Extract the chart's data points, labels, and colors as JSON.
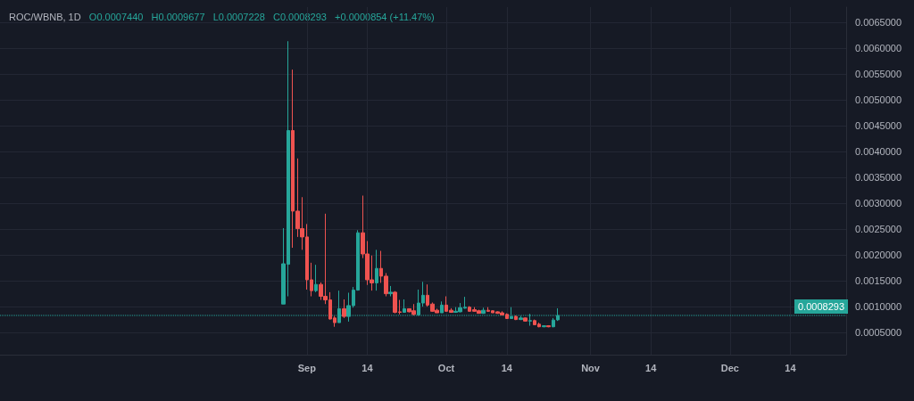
{
  "chart_data": {
    "type": "candlestick",
    "title": "ROC/WBNB, 1D",
    "annotations": [
      "O0.0007440",
      "H0.0009677",
      "L0.0007228",
      "C0.0008293",
      "+0.0000854 (+11.47%)"
    ],
    "x": [
      "--08-27",
      "--08-28",
      "--08-29",
      "--08-30",
      "--08-31",
      "--09-01",
      "--09-02",
      "--09-03",
      "--09-04",
      "--09-05",
      "--09-06",
      "--09-07",
      "--09-08",
      "--09-09",
      "--09-10",
      "--09-11",
      "--09-12",
      "--09-13",
      "--09-14",
      "--09-15",
      "--09-16",
      "--09-17",
      "--09-18",
      "--09-19",
      "--09-20",
      "--09-21",
      "--09-22",
      "--09-23",
      "--09-24",
      "--09-25",
      "--09-26",
      "--09-27",
      "--09-28",
      "--09-29",
      "--09-30",
      "--10-01",
      "--10-02",
      "--10-03",
      "--10-04",
      "--10-05",
      "--10-06",
      "--10-07",
      "--10-08",
      "--10-09",
      "--10-10",
      "--10-11",
      "--10-12",
      "--10-13",
      "--10-14",
      "--10-15",
      "--10-16",
      "--10-17",
      "--10-18",
      "--10-19",
      "--10-20",
      "--10-21",
      "--10-22",
      "--10-23",
      "--10-24",
      "--10-25"
    ],
    "ohlc": [
      [
        0.00105,
        0.00252,
        0.00105,
        0.00183
      ],
      [
        0.00182,
        0.00614,
        0.0012,
        0.00441
      ],
      [
        0.00441,
        0.00559,
        0.00214,
        0.00285
      ],
      [
        0.00285,
        0.00387,
        0.00235,
        0.00251
      ],
      [
        0.00251,
        0.00312,
        0.0021,
        0.00235
      ],
      [
        0.00235,
        0.0026,
        0.00133,
        0.00152
      ],
      [
        0.00152,
        0.00185,
        0.0012,
        0.00131
      ],
      [
        0.00131,
        0.00181,
        0.00128,
        0.00143
      ],
      [
        0.00143,
        0.00147,
        0.00113,
        0.0012
      ],
      [
        0.0012,
        0.0028,
        0.00105,
        0.00113
      ],
      [
        0.00113,
        0.00128,
        0.00075,
        0.00076
      ],
      [
        0.00078,
        0.00082,
        0.00061,
        0.00069
      ],
      [
        0.00069,
        0.00131,
        0.00069,
        0.00096
      ],
      [
        0.00096,
        0.00114,
        0.00078,
        0.00081
      ],
      [
        0.00081,
        0.00127,
        0.00071,
        0.00102
      ],
      [
        0.00102,
        0.00138,
        0.00098,
        0.00132
      ],
      [
        0.00132,
        0.00248,
        0.00131,
        0.00243
      ],
      [
        0.00243,
        0.00315,
        0.00194,
        0.00202
      ],
      [
        0.00202,
        0.00227,
        0.00142,
        0.00152
      ],
      [
        0.00152,
        0.00199,
        0.00131,
        0.00146
      ],
      [
        0.00146,
        0.0021,
        0.00131,
        0.00174
      ],
      [
        0.00174,
        0.00208,
        0.00146,
        0.00159
      ],
      [
        0.00159,
        0.00165,
        0.0012,
        0.00125
      ],
      [
        0.00125,
        0.0014,
        0.0012,
        0.00128
      ],
      [
        0.00128,
        0.0013,
        0.00087,
        0.00089
      ],
      [
        0.0009,
        0.00113,
        0.00085,
        0.00089
      ],
      [
        0.00089,
        0.00114,
        0.00089,
        0.00096
      ],
      [
        0.00096,
        0.00096,
        0.00089,
        0.0009
      ],
      [
        0.00092,
        0.00105,
        0.00083,
        0.00085
      ],
      [
        0.00084,
        0.00133,
        0.00082,
        0.00107
      ],
      [
        0.00107,
        0.00148,
        0.001,
        0.00122
      ],
      [
        0.00122,
        0.00143,
        0.001,
        0.00103
      ],
      [
        0.00105,
        0.00108,
        0.0009,
        0.00091
      ],
      [
        0.00093,
        0.00096,
        0.00088,
        0.00088
      ],
      [
        0.00088,
        0.0011,
        0.00088,
        0.00103
      ],
      [
        0.00103,
        0.0012,
        0.0009,
        0.00091
      ],
      [
        0.00093,
        0.00097,
        0.00088,
        0.00089
      ],
      [
        0.00089,
        0.00099,
        0.00088,
        0.00091
      ],
      [
        0.0009,
        0.00107,
        0.00089,
        0.00098
      ],
      [
        0.00097,
        0.00119,
        0.00096,
        0.00099
      ],
      [
        0.00099,
        0.00101,
        0.0009,
        0.00091
      ],
      [
        0.00094,
        0.00099,
        0.0009,
        0.00091
      ],
      [
        0.00092,
        0.00094,
        0.00087,
        0.00087
      ],
      [
        0.00087,
        0.00098,
        0.00086,
        0.00093
      ],
      [
        0.00093,
        0.00099,
        0.0009,
        0.00091
      ],
      [
        0.00092,
        0.00093,
        0.00088,
        0.00088
      ],
      [
        0.0009,
        0.00091,
        0.00086,
        0.00087
      ],
      [
        0.00088,
        0.00091,
        0.00083,
        0.00084
      ],
      [
        0.00085,
        0.00087,
        0.00076,
        0.00077
      ],
      [
        0.00077,
        0.00099,
        0.00076,
        0.00081
      ],
      [
        0.00081,
        0.00083,
        0.00074,
        0.00075
      ],
      [
        0.00075,
        0.00082,
        0.00074,
        0.00078
      ],
      [
        0.00078,
        0.00079,
        0.00071,
        0.00072
      ],
      [
        0.00072,
        0.00086,
        0.00063,
        0.00073
      ],
      [
        0.00073,
        0.00075,
        0.00064,
        0.00065
      ],
      [
        0.00066,
        0.00069,
        0.0006,
        0.00061
      ],
      [
        0.00061,
        0.00064,
        0.0006,
        0.00063
      ],
      [
        0.00063,
        0.00064,
        0.0006,
        0.00061
      ],
      [
        0.00061,
        0.00078,
        0.0006,
        0.00074
      ],
      [
        0.000744,
        0.0009677,
        0.0007228,
        0.0008293
      ]
    ],
    "colors": [
      "#26a69a",
      "#26a69a",
      "#ef5350",
      "#ef5350",
      "#ef5350",
      "#ef5350",
      "#ef5350",
      "#26a69a",
      "#ef5350",
      "#ef5350",
      "#ef5350",
      "#ef5350",
      "#26a69a",
      "#ef5350",
      "#26a69a",
      "#26a69a",
      "#26a69a",
      "#ef5350",
      "#ef5350",
      "#ef5350",
      "#26a69a",
      "#ef5350",
      "#ef5350",
      "#26a69a",
      "#ef5350",
      "#ef5350",
      "#26a69a",
      "#ef5350",
      "#ef5350",
      "#26a69a",
      "#26a69a",
      "#ef5350",
      "#ef5350",
      "#ef5350",
      "#26a69a",
      "#ef5350",
      "#ef5350",
      "#26a69a",
      "#26a69a",
      "#26a69a",
      "#ef5350",
      "#ef5350",
      "#ef5350",
      "#26a69a",
      "#ef5350",
      "#ef5350",
      "#ef5350",
      "#ef5350",
      "#ef5350",
      "#26a69a",
      "#ef5350",
      "#26a69a",
      "#ef5350",
      "#26a69a",
      "#ef5350",
      "#ef5350",
      "#26a69a",
      "#ef5350",
      "#26a69a",
      "#26a69a"
    ],
    "xlim": [
      "--06-27",
      "--12-26"
    ],
    "xticks": [
      {
        "value": "--09-01",
        "label": "Sep"
      },
      {
        "value": "--09-14",
        "label": "14"
      },
      {
        "value": "--10-01",
        "label": "Oct"
      },
      {
        "value": "--10-14",
        "label": "14"
      },
      {
        "value": "--11-01",
        "label": "Nov"
      },
      {
        "value": "--11-14",
        "label": "14"
      },
      {
        "value": "--12-01",
        "label": "Dec"
      },
      {
        "value": "--12-14",
        "label": "14"
      }
    ],
    "ylim": [
      7e-05,
      0.0068
    ],
    "yticks": [
      {
        "value": 0.0005,
        "label": "0.0005000"
      },
      {
        "value": 0.001,
        "label": "0.0010000"
      },
      {
        "value": 0.0015,
        "label": "0.0015000"
      },
      {
        "value": 0.002,
        "label": "0.0020000"
      },
      {
        "value": 0.0025,
        "label": "0.0025000"
      },
      {
        "value": 0.003,
        "label": "0.0030000"
      },
      {
        "value": 0.0035,
        "label": "0.0035000"
      },
      {
        "value": 0.004,
        "label": "0.0040000"
      },
      {
        "value": 0.0045,
        "label": "0.0045000"
      },
      {
        "value": 0.005,
        "label": "0.0050000"
      },
      {
        "value": 0.0055,
        "label": "0.0055000"
      },
      {
        "value": 0.006,
        "label": "0.0060000"
      },
      {
        "value": 0.0065,
        "label": "0.0065000"
      }
    ],
    "ref_lines": [
      {
        "axis": "y",
        "value": 0.0008293,
        "label": "0.0008293",
        "color": "#26a69a",
        "line_style": "dotted"
      }
    ],
    "grid": true
  }
}
